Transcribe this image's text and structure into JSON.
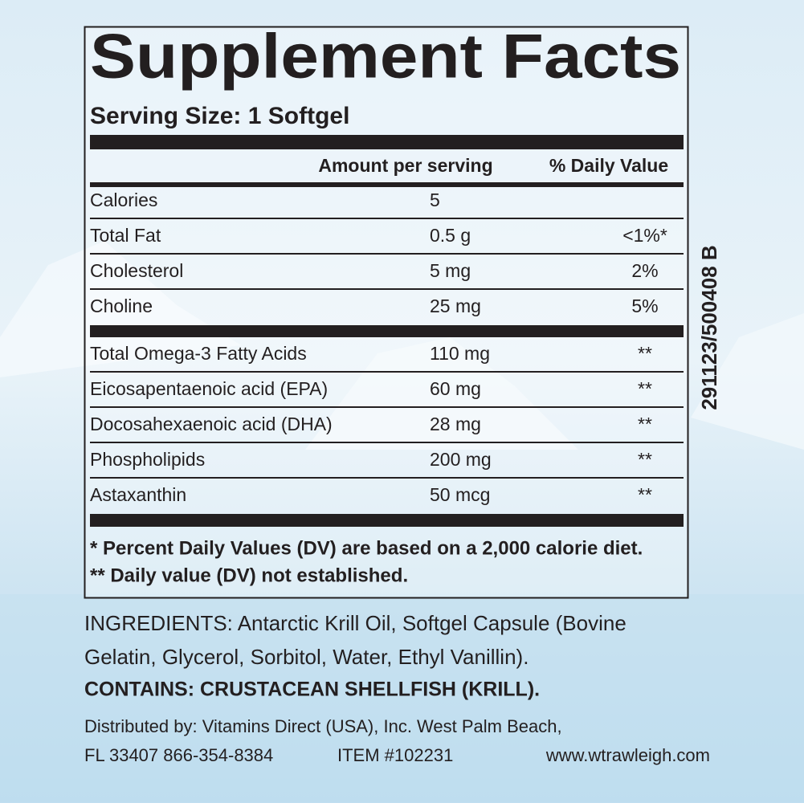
{
  "label": {
    "title": "Supplement Facts",
    "serving_size": "Serving Size: 1 Softgel",
    "header": {
      "amount": "Amount per serving",
      "daily_value": "% Daily Value"
    },
    "sections": [
      {
        "rows": [
          {
            "name": "Calories",
            "amount": "5"
          },
          {
            "name": "Total Fat",
            "amount": "0.5 g",
            "daily_value": "<1%*"
          },
          {
            "name": "Cholesterol",
            "amount": "5 mg",
            "daily_value": "2%"
          },
          {
            "name": "Choline",
            "amount": "25 mg",
            "daily_value": "5%"
          }
        ]
      },
      {
        "rows": [
          {
            "name": "Total Omega-3 Fatty Acids",
            "amount": "110 mg",
            "daily_value": "**"
          },
          {
            "name": "Eicosapentaenoic acid (EPA)",
            "amount": "60 mg",
            "daily_value": "**"
          },
          {
            "name": "Docosahexaenoic acid (DHA)",
            "amount": "28 mg",
            "daily_value": "**"
          },
          {
            "name": "Phospholipids",
            "amount": "200 mg",
            "daily_value": "**"
          },
          {
            "name": "Astaxanthin",
            "amount": "50 mcg",
            "daily_value": "**"
          }
        ]
      }
    ],
    "footnotes": [
      "* Percent Daily Values (DV) are based on a 2,000 calorie diet.",
      "** Daily value (DV) not established."
    ]
  },
  "ingredients": {
    "lines": [
      "INGREDIENTS: Antarctic Krill Oil, Softgel Capsule (Bovine",
      "Gelatin, Glycerol, Sorbitol, Water, Ethyl Vanillin)."
    ],
    "contains": "CONTAINS: CRUSTACEAN SHELLFISH (KRILL)."
  },
  "distributor": {
    "line1": "Distributed by:  Vitamins Direct (USA), Inc. West Palm Beach,",
    "address": "FL 33407 866-354-8384",
    "item": "ITEM #102231",
    "website": "www.wtrawleigh.com"
  },
  "side_code": "291123/500408 B"
}
